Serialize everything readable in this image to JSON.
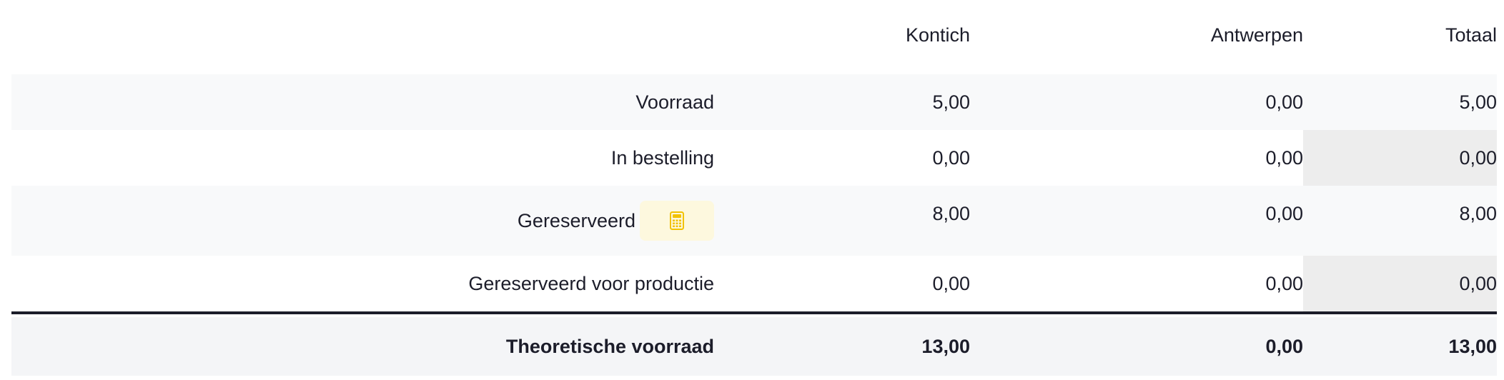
{
  "columns": {
    "label": "",
    "kontich": "Kontich",
    "antwerpen": "Antwerpen",
    "totaal": "Totaal"
  },
  "rows": [
    {
      "label": "Voorraad",
      "kontich": "5,00",
      "antwerpen": "0,00",
      "totaal": "5,00"
    },
    {
      "label": "In bestelling",
      "kontich": "0,00",
      "antwerpen": "0,00",
      "totaal": "0,00"
    },
    {
      "label": "Gereserveerd",
      "kontich": "8,00",
      "antwerpen": "0,00",
      "totaal": "8,00",
      "icon": "calculator-icon"
    },
    {
      "label": "Gereserveerd voor productie",
      "kontich": "0,00",
      "antwerpen": "0,00",
      "totaal": "0,00"
    }
  ],
  "footer": {
    "label": "Theoretische voorraad",
    "kontich": "13,00",
    "antwerpen": "0,00",
    "totaal": "13,00"
  },
  "colors": {
    "text": "#1c1d2a",
    "stripe": "#f8f9fa",
    "total_shade": "#ededed",
    "footer_bg": "#f4f5f7",
    "calc_button_bg": "#fdf8de",
    "calc_icon": "#f2c200"
  }
}
